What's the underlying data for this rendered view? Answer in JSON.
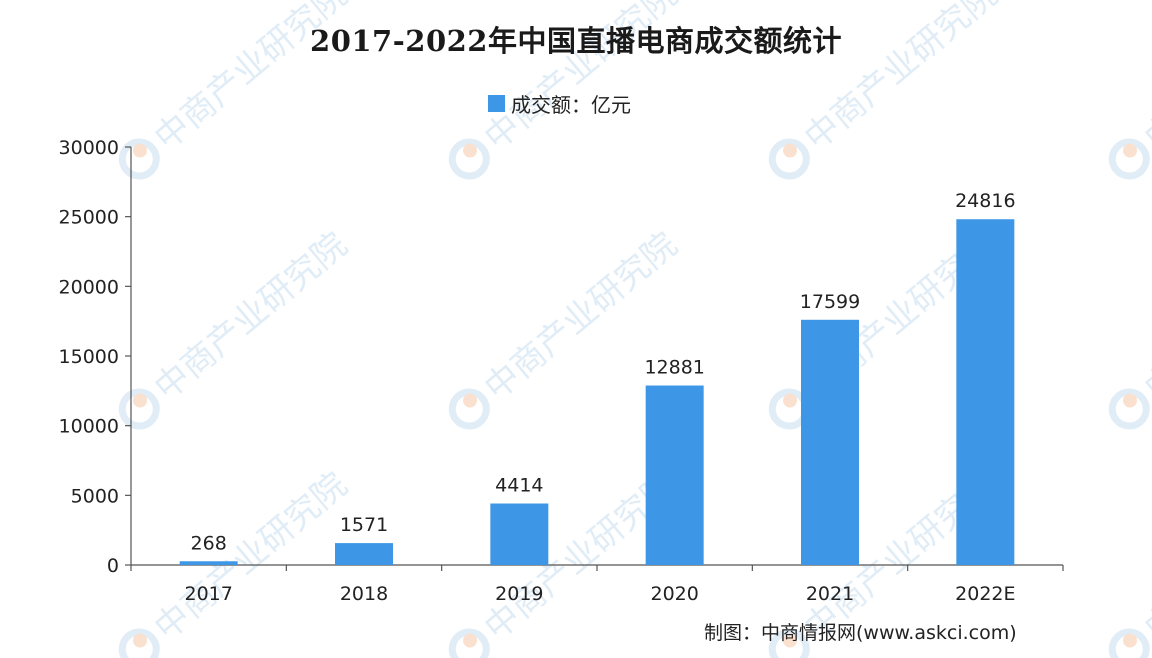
{
  "page": {
    "watermark_text": "中商产业研究院",
    "credit": "制图：中商情报网(www.askci.com)"
  },
  "colors": {
    "bar": "#3d97e6",
    "axis": "#555555",
    "watermark": "#c8ddf0",
    "watermark_logo_orange": "#f6c9a8"
  },
  "chart_data": {
    "type": "bar",
    "title": "2017-2022年中国直播电商成交额统计",
    "categories": [
      "2017",
      "2018",
      "2019",
      "2020",
      "2021",
      "2022E"
    ],
    "series": [
      {
        "name": "成交额：亿元",
        "values": [
          268,
          1571,
          4414,
          12881,
          17599,
          24816
        ]
      }
    ],
    "data_labels": [
      "268",
      "1571",
      "4414",
      "12881",
      "17599",
      "24816"
    ],
    "ylim": [
      0,
      30000
    ],
    "yticks": [
      0,
      5000,
      10000,
      15000,
      20000,
      25000,
      30000
    ],
    "xlabel": "",
    "ylabel": "",
    "legend_position": "top-center",
    "grid": false
  }
}
